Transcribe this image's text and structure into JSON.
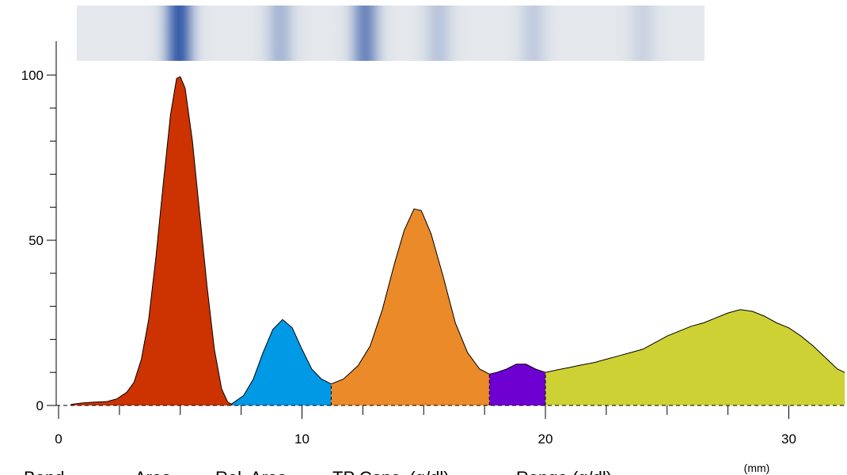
{
  "chart_data": {
    "type": "area",
    "title": "",
    "xlabel": "",
    "ylabel": "",
    "x_unit": "(mm)",
    "xlim": [
      -0.2,
      32.3
    ],
    "ylim": [
      0,
      110
    ],
    "x_ticks": [
      0,
      10,
      20,
      30
    ],
    "y_ticks": [
      0,
      50,
      100
    ],
    "grid": false,
    "series": [
      {
        "fill": "#cc3300",
        "points": [
          [
            0.5,
            0.3
          ],
          [
            1.0,
            0.8
          ],
          [
            1.5,
            1.0
          ],
          [
            2.0,
            1.2
          ],
          [
            2.4,
            2.0
          ],
          [
            2.8,
            4.0
          ],
          [
            3.1,
            7.0
          ],
          [
            3.4,
            14.0
          ],
          [
            3.7,
            26.0
          ],
          [
            4.0,
            45.0
          ],
          [
            4.3,
            67.0
          ],
          [
            4.6,
            88.0
          ],
          [
            4.85,
            99.0
          ],
          [
            5.0,
            99.5
          ],
          [
            5.2,
            96.0
          ],
          [
            5.5,
            80.0
          ],
          [
            5.8,
            58.0
          ],
          [
            6.1,
            36.0
          ],
          [
            6.4,
            17.0
          ],
          [
            6.7,
            5.0
          ],
          [
            6.95,
            1.0
          ],
          [
            7.1,
            0.4
          ]
        ]
      },
      {
        "fill": "#0099e6",
        "points": [
          [
            7.1,
            0.4
          ],
          [
            7.6,
            3.0
          ],
          [
            8.0,
            8.0
          ],
          [
            8.4,
            16.0
          ],
          [
            8.8,
            23.0
          ],
          [
            9.2,
            26.0
          ],
          [
            9.6,
            23.5
          ],
          [
            10.0,
            17.0
          ],
          [
            10.4,
            11.0
          ],
          [
            10.8,
            8.0
          ],
          [
            11.2,
            6.5
          ]
        ]
      },
      {
        "fill": "#ea8a28",
        "points": [
          [
            11.2,
            6.5
          ],
          [
            11.7,
            8.0
          ],
          [
            12.3,
            12.0
          ],
          [
            12.8,
            18.0
          ],
          [
            13.3,
            29.0
          ],
          [
            13.8,
            43.0
          ],
          [
            14.2,
            53.0
          ],
          [
            14.6,
            59.5
          ],
          [
            14.9,
            59.0
          ],
          [
            15.3,
            52.0
          ],
          [
            15.8,
            39.0
          ],
          [
            16.3,
            25.0
          ],
          [
            16.8,
            16.0
          ],
          [
            17.3,
            11.0
          ],
          [
            17.7,
            9.5
          ]
        ]
      },
      {
        "fill": "#6e00d2",
        "points": [
          [
            17.7,
            9.5
          ],
          [
            18.0,
            10.0
          ],
          [
            18.4,
            11.0
          ],
          [
            18.8,
            12.5
          ],
          [
            19.2,
            12.5
          ],
          [
            19.6,
            11.0
          ],
          [
            20.0,
            10.0
          ]
        ]
      },
      {
        "fill": "#cdd133",
        "points": [
          [
            20.0,
            10.0
          ],
          [
            20.5,
            10.8
          ],
          [
            21.0,
            11.5
          ],
          [
            21.5,
            12.3
          ],
          [
            22.0,
            13.0
          ],
          [
            22.5,
            14.0
          ],
          [
            23.0,
            15.0
          ],
          [
            23.5,
            16.0
          ],
          [
            24.0,
            17.0
          ],
          [
            24.5,
            19.0
          ],
          [
            25.0,
            21.0
          ],
          [
            25.5,
            22.5
          ],
          [
            26.0,
            24.0
          ],
          [
            26.5,
            25.0
          ],
          [
            27.0,
            26.5
          ],
          [
            27.5,
            28.0
          ],
          [
            28.0,
            29.0
          ],
          [
            28.5,
            28.5
          ],
          [
            29.0,
            27.0
          ],
          [
            29.5,
            25.0
          ],
          [
            30.0,
            23.5
          ],
          [
            30.5,
            21.0
          ],
          [
            31.0,
            18.0
          ],
          [
            31.5,
            14.5
          ],
          [
            32.0,
            11.0
          ],
          [
            32.3,
            10.0
          ]
        ]
      }
    ],
    "gel_bands": [
      {
        "x": 4.95,
        "strength": 1.0
      },
      {
        "x": 9.1,
        "strength": 0.35
      },
      {
        "x": 12.6,
        "strength": 0.7
      },
      {
        "x": 15.6,
        "strength": 0.25
      },
      {
        "x": 19.5,
        "strength": 0.2
      },
      {
        "x": 24.0,
        "strength": 0.15
      }
    ]
  },
  "table_header": {
    "band": "Band",
    "area": "Area",
    "rel_area": "Rel. Area",
    "tp_conc": "TP Conc. (g/dl)",
    "range": "Range (g/dl)"
  },
  "colors": {
    "axis": "#000000",
    "gel_base": "#e4e8ec",
    "gel_band": "#3a5eaa"
  }
}
